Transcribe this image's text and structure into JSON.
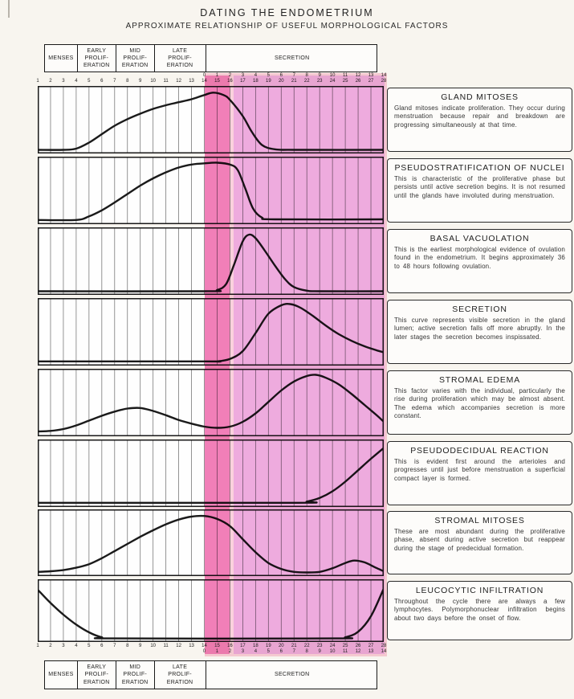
{
  "title": "DATING THE ENDOMETRIUM",
  "subtitle": "APPROXIMATE RELATIONSHIP OF USEFUL MORPHOLOGICAL FACTORS",
  "phases": [
    {
      "lines": [
        "MENSES"
      ],
      "start_day": 1,
      "end_day": 4
    },
    {
      "lines": [
        "EARLY",
        "PROLIF-",
        "ERATION"
      ],
      "start_day": 4,
      "end_day": 7
    },
    {
      "lines": [
        "MID",
        "PROLIF-",
        "ERATION"
      ],
      "start_day": 7,
      "end_day": 10
    },
    {
      "lines": [
        "LATE",
        "PROLIF-",
        "ERATION"
      ],
      "start_day": 10,
      "end_day": 14
    },
    {
      "lines": [
        "SECRETION"
      ],
      "start_day": 14,
      "end_day": 28
    }
  ],
  "axis": {
    "cycle_days": [
      1,
      2,
      3,
      4,
      5,
      6,
      7,
      8,
      9,
      10,
      11,
      12,
      13,
      14,
      15,
      16,
      17,
      18,
      19,
      20,
      21,
      22,
      23,
      24,
      25,
      26,
      27,
      28
    ],
    "postovulatory_days": [
      0,
      1,
      2,
      3,
      4,
      5,
      6,
      7,
      8,
      9,
      10,
      11,
      12,
      13,
      14
    ],
    "dual_numbering_starts_at_day": 14
  },
  "highlights": {
    "ovulation_band_days": [
      14,
      16
    ],
    "secretion_overlay_days": [
      14,
      28
    ]
  },
  "colors": {
    "overlay_dark_pink": "#f27fb9",
    "overlay_light_pink": "#efacdf",
    "overlay_edge_pink": "#fbd2de",
    "curve": "#1a1a1a",
    "grid": "#7a7a7a",
    "chart_bg": "#fefefe",
    "page_bg": "#f8f5ef"
  },
  "panels": [
    {
      "title": "GLAND MITOSES",
      "body": "Gland mitoses indicate proliferation.  They occur during menstruation because repair and breakdown are progressing simultaneously at that time."
    },
    {
      "title": "PSEUDOSTRATIFICATION OF NUCLEI",
      "body": "This is characteristic of the proliferative phase but persists until active secretion begins.  It is not resumed until the glands have involuted during menstruation."
    },
    {
      "title": "BASAL VACUOLATION",
      "body": "This is the earliest morphological evidence of ovulation found in the endometrium.  It begins approximately 36 to 48 hours following ovulation."
    },
    {
      "title": "SECRETION",
      "body": "This curve represents visible secretion in the gland lumen; active secretion falls off more abruptly.  In the later stages the secretion becomes inspissated."
    },
    {
      "title": "STROMAL EDEMA",
      "body": "This factor varies with the individual, particularly the rise during proliferation which may be almost absent.  The edema which accompanies secretion is more constant."
    },
    {
      "title": "PSEUDODECIDUAL REACTION",
      "body": "This is evident first around the arterioles and progresses until just before menstruation a superficial compact layer is formed."
    },
    {
      "title": "STROMAL MITOSES",
      "body": "These are most abundant during the proliferative phase, absent during active secretion but reappear during the stage of predecidual formation."
    },
    {
      "title": "LEUCOCYTIC INFILTRATION",
      "body": "Throughout the cycle there are always a few lymphocytes.  Polymorphonuclear infiltration begins about two days before the onset of flow."
    }
  ],
  "chart_data": [
    {
      "type": "line",
      "title": "GLAND MITOSES",
      "x_unit": "cycle day",
      "x_range": [
        1,
        28
      ],
      "y_scale": "relative 0-1 (estimated from curve height)",
      "x": [
        1,
        3,
        4,
        5,
        6,
        7,
        8,
        9,
        10,
        11,
        12,
        13,
        14,
        14.7,
        15.5,
        16,
        17,
        17.7,
        18.5,
        19.5,
        21,
        28
      ],
      "y": [
        0.02,
        0.02,
        0.04,
        0.14,
        0.28,
        0.42,
        0.53,
        0.62,
        0.7,
        0.76,
        0.81,
        0.86,
        0.93,
        0.97,
        0.93,
        0.85,
        0.58,
        0.32,
        0.1,
        0.03,
        0.02,
        0.02
      ]
    },
    {
      "type": "line",
      "title": "PSEUDOSTRATIFICATION OF NUCLEI",
      "x_unit": "cycle day",
      "x_range": [
        1,
        28
      ],
      "y_scale": "relative 0-1 (estimated from curve height)",
      "x": [
        1,
        4,
        5,
        6,
        7,
        8,
        9,
        10,
        11,
        12,
        13,
        14,
        15,
        16,
        16.6,
        17.2,
        17.8,
        18.5,
        19.5,
        28
      ],
      "y": [
        0.03,
        0.03,
        0.09,
        0.19,
        0.32,
        0.46,
        0.6,
        0.72,
        0.82,
        0.9,
        0.95,
        0.97,
        0.98,
        0.95,
        0.86,
        0.55,
        0.22,
        0.07,
        0.04,
        0.04
      ]
    },
    {
      "type": "line",
      "title": "BASAL VACUOLATION",
      "x_unit": "cycle day",
      "x_range": [
        1,
        28
      ],
      "y_scale": "relative 0-1 (estimated from curve height)",
      "x": [
        1,
        14,
        15,
        15.7,
        16.3,
        17,
        17.5,
        18,
        18.7,
        19.5,
        20.3,
        21,
        22,
        23,
        28
      ],
      "y": [
        0.02,
        0.02,
        0.04,
        0.14,
        0.45,
        0.85,
        0.96,
        0.9,
        0.7,
        0.45,
        0.22,
        0.09,
        0.03,
        0.02,
        0.02
      ]
    },
    {
      "type": "line",
      "title": "SECRETION",
      "x_unit": "cycle day",
      "x_range": [
        1,
        28
      ],
      "y_scale": "relative 0-1 (estimated from curve height)",
      "x": [
        1,
        14,
        15,
        16,
        17,
        18,
        19,
        20,
        20.7,
        21.5,
        22.5,
        23.5,
        24.5,
        25.5,
        26.5,
        27.5,
        28
      ],
      "y": [
        0.03,
        0.03,
        0.03,
        0.07,
        0.2,
        0.5,
        0.82,
        0.96,
        0.98,
        0.92,
        0.78,
        0.62,
        0.48,
        0.37,
        0.28,
        0.21,
        0.18
      ]
    },
    {
      "type": "line",
      "title": "STROMAL EDEMA",
      "x_unit": "cycle day",
      "x_range": [
        1,
        28
      ],
      "y_scale": "relative 0-1 (estimated from curve height)",
      "x": [
        1,
        2,
        3,
        4,
        5,
        6,
        7,
        8,
        9,
        10,
        11,
        12,
        13,
        14,
        15,
        16,
        17,
        18,
        19,
        20,
        21,
        22,
        22.7,
        23.5,
        24.5,
        25.5,
        26.5,
        27.5,
        28
      ],
      "y": [
        0.04,
        0.05,
        0.08,
        0.14,
        0.22,
        0.3,
        0.37,
        0.42,
        0.43,
        0.38,
        0.31,
        0.23,
        0.17,
        0.12,
        0.1,
        0.12,
        0.2,
        0.34,
        0.53,
        0.72,
        0.87,
        0.96,
        0.98,
        0.93,
        0.82,
        0.66,
        0.48,
        0.3,
        0.2
      ]
    },
    {
      "type": "line",
      "title": "PSEUDODECIDUAL REACTION",
      "x_unit": "cycle day",
      "x_range": [
        1,
        28
      ],
      "y_scale": "relative 0-1 (estimated from curve height)",
      "x": [
        1,
        21,
        22,
        23,
        24,
        25,
        26,
        27,
        28
      ],
      "y": [
        0.03,
        0.03,
        0.05,
        0.11,
        0.22,
        0.38,
        0.57,
        0.76,
        0.94
      ]
    },
    {
      "type": "line",
      "title": "STROMAL MITOSES",
      "x_unit": "cycle day",
      "x_range": [
        1,
        28
      ],
      "y_scale": "relative 0-1 (estimated from curve height)",
      "x": [
        1,
        2,
        3,
        4,
        5,
        6,
        7,
        8,
        9,
        10,
        11,
        12,
        13,
        14,
        15,
        16,
        17,
        18,
        19,
        20,
        21,
        22,
        23,
        24,
        25,
        25.7,
        26.5,
        27.3,
        28
      ],
      "y": [
        0.03,
        0.04,
        0.06,
        0.1,
        0.16,
        0.26,
        0.38,
        0.5,
        0.62,
        0.73,
        0.83,
        0.91,
        0.96,
        0.97,
        0.92,
        0.8,
        0.58,
        0.36,
        0.18,
        0.08,
        0.03,
        0.02,
        0.03,
        0.09,
        0.18,
        0.22,
        0.19,
        0.11,
        0.04
      ]
    },
    {
      "type": "line",
      "title": "LEUCOCYTIC INFILTRATION",
      "x_unit": "cycle day",
      "x_range": [
        1,
        28
      ],
      "y_scale": "relative 0-1 (estimated from curve height)",
      "x": [
        1,
        2,
        3,
        4,
        5,
        6,
        7,
        24,
        25,
        26,
        27,
        28
      ],
      "y": [
        0.9,
        0.66,
        0.45,
        0.27,
        0.13,
        0.04,
        0.02,
        0.02,
        0.04,
        0.14,
        0.42,
        0.92
      ]
    }
  ]
}
